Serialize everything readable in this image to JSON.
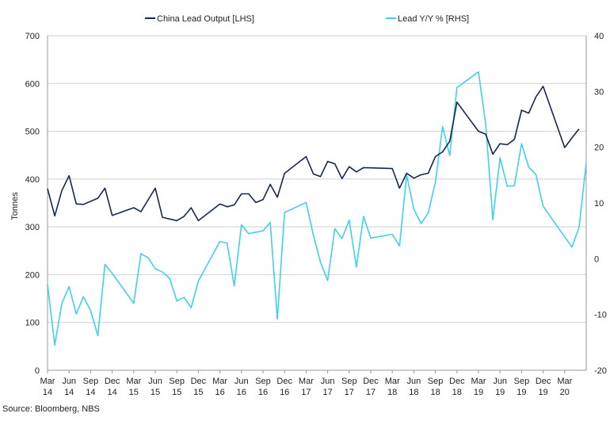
{
  "chart_data": {
    "type": "line",
    "legend": {
      "placement": "top-center"
    },
    "grid": {
      "horizontal": true,
      "vertical": false
    },
    "y_left": {
      "label": "Tonnes",
      "range": [
        0,
        700
      ],
      "ticks": [
        "0",
        "100",
        "200",
        "300",
        "400",
        "500",
        "600",
        "700"
      ]
    },
    "y_right": {
      "label": "",
      "range": [
        -20,
        40
      ],
      "ticks": [
        "-20",
        "-10",
        "0",
        "10",
        "20",
        "30",
        "40"
      ]
    },
    "x_axis": {
      "start": "2014-03",
      "end": "2020-06",
      "ticks": [
        {
          "month": "Mar",
          "year": "14"
        },
        {
          "month": "Jun",
          "year": "14"
        },
        {
          "month": "Sep",
          "year": "14"
        },
        {
          "month": "Dec",
          "year": "14"
        },
        {
          "month": "Mar",
          "year": "15"
        },
        {
          "month": "Jun",
          "year": "15"
        },
        {
          "month": "Sep",
          "year": "15"
        },
        {
          "month": "Dec",
          "year": "15"
        },
        {
          "month": "Mar",
          "year": "16"
        },
        {
          "month": "Jun",
          "year": "16"
        },
        {
          "month": "Sep",
          "year": "16"
        },
        {
          "month": "Dec",
          "year": "16"
        },
        {
          "month": "Mar",
          "year": "17"
        },
        {
          "month": "Jun",
          "year": "17"
        },
        {
          "month": "Sep",
          "year": "17"
        },
        {
          "month": "Dec",
          "year": "17"
        },
        {
          "month": "Mar",
          "year": "18"
        },
        {
          "month": "Jun",
          "year": "18"
        },
        {
          "month": "Sep",
          "year": "18"
        },
        {
          "month": "Dec",
          "year": "18"
        },
        {
          "month": "Mar",
          "year": "19"
        },
        {
          "month": "Jun",
          "year": "19"
        },
        {
          "month": "Sep",
          "year": "19"
        },
        {
          "month": "Dec",
          "year": "19"
        },
        {
          "month": "Mar",
          "year": "20"
        }
      ]
    },
    "series": [
      {
        "name": "China Lead Output [LHS]",
        "axis": "left",
        "color": "#142850",
        "points": [
          [
            "2014-03",
            380
          ],
          [
            "2014-04",
            323
          ],
          [
            "2014-05",
            376
          ],
          [
            "2014-06",
            407
          ],
          [
            "2014-07",
            348
          ],
          [
            "2014-08",
            347
          ],
          [
            "2014-10",
            360
          ],
          [
            "2014-11",
            381
          ],
          [
            "2014-12",
            324
          ],
          [
            "2015-03",
            340
          ],
          [
            "2015-04",
            332
          ],
          [
            "2015-06",
            381
          ],
          [
            "2015-07",
            320
          ],
          [
            "2015-09",
            313
          ],
          [
            "2015-10",
            322
          ],
          [
            "2015-11",
            340
          ],
          [
            "2015-12",
            313
          ],
          [
            "2016-03",
            348
          ],
          [
            "2016-04",
            342
          ],
          [
            "2016-05",
            346
          ],
          [
            "2016-06",
            369
          ],
          [
            "2016-07",
            369
          ],
          [
            "2016-08",
            351
          ],
          [
            "2016-09",
            357
          ],
          [
            "2016-10",
            389
          ],
          [
            "2016-11",
            362
          ],
          [
            "2016-12",
            412
          ],
          [
            "2017-03",
            447
          ],
          [
            "2017-04",
            411
          ],
          [
            "2017-05",
            405
          ],
          [
            "2017-06",
            437
          ],
          [
            "2017-07",
            432
          ],
          [
            "2017-08",
            401
          ],
          [
            "2017-09",
            426
          ],
          [
            "2017-10",
            415
          ],
          [
            "2017-11",
            424
          ],
          [
            "2018-03",
            422
          ],
          [
            "2018-04",
            381
          ],
          [
            "2018-05",
            412
          ],
          [
            "2018-06",
            402
          ],
          [
            "2018-07",
            409
          ],
          [
            "2018-08",
            412
          ],
          [
            "2018-09",
            447
          ],
          [
            "2018-10",
            457
          ],
          [
            "2018-11",
            479
          ],
          [
            "2018-12",
            561
          ],
          [
            "2019-03",
            500
          ],
          [
            "2019-04",
            494
          ],
          [
            "2019-05",
            452
          ],
          [
            "2019-06",
            474
          ],
          [
            "2019-07",
            472
          ],
          [
            "2019-08",
            483
          ],
          [
            "2019-09",
            544
          ],
          [
            "2019-10",
            538
          ],
          [
            "2019-11",
            572
          ],
          [
            "2019-12",
            594
          ],
          [
            "2020-03",
            466
          ],
          [
            "2020-04",
            486
          ],
          [
            "2020-05",
            505
          ]
        ]
      },
      {
        "name": "Lead Y/Y % [RHS]",
        "axis": "right",
        "color": "#3ed0ec",
        "points": [
          [
            "2014-03",
            -4.6
          ],
          [
            "2014-04",
            -15.5
          ],
          [
            "2014-05",
            -8
          ],
          [
            "2014-06",
            -5
          ],
          [
            "2014-07",
            -9.9
          ],
          [
            "2014-08",
            -6.8
          ],
          [
            "2014-09",
            -9.3
          ],
          [
            "2014-10",
            -13.8
          ],
          [
            "2014-11",
            -1
          ],
          [
            "2014-12",
            -2.6
          ],
          [
            "2015-03",
            -8
          ],
          [
            "2015-04",
            0.9
          ],
          [
            "2015-05",
            0.2
          ],
          [
            "2015-06",
            -1.8
          ],
          [
            "2015-07",
            -2.4
          ],
          [
            "2015-08",
            -3.5
          ],
          [
            "2015-09",
            -7.6
          ],
          [
            "2015-10",
            -6.9
          ],
          [
            "2015-11",
            -8.8
          ],
          [
            "2015-12",
            -4
          ],
          [
            "2016-03",
            3.1
          ],
          [
            "2016-04",
            2.8
          ],
          [
            "2016-05",
            -4.9
          ],
          [
            "2016-06",
            6.1
          ],
          [
            "2016-07",
            4.5
          ],
          [
            "2016-09",
            5
          ],
          [
            "2016-10",
            6.5
          ],
          [
            "2016-11",
            -10.8
          ],
          [
            "2016-12",
            8.3
          ],
          [
            "2017-03",
            10.1
          ],
          [
            "2017-04",
            4.3
          ],
          [
            "2017-05",
            -0.6
          ],
          [
            "2017-06",
            -3.9
          ],
          [
            "2017-07",
            5.4
          ],
          [
            "2017-08",
            3.6
          ],
          [
            "2017-09",
            6.9
          ],
          [
            "2017-10",
            -1.5
          ],
          [
            "2017-11",
            7.6
          ],
          [
            "2017-12",
            3.7
          ],
          [
            "2018-03",
            4.4
          ],
          [
            "2018-04",
            2.3
          ],
          [
            "2018-05",
            15
          ],
          [
            "2018-06",
            8.9
          ],
          [
            "2018-07",
            6.3
          ],
          [
            "2018-08",
            8.2
          ],
          [
            "2018-09",
            13.7
          ],
          [
            "2018-10",
            23.7
          ],
          [
            "2018-11",
            18.5
          ],
          [
            "2018-12",
            30.7
          ],
          [
            "2019-03",
            33.5
          ],
          [
            "2019-04",
            24.1
          ],
          [
            "2019-05",
            7
          ],
          [
            "2019-06",
            18.1
          ],
          [
            "2019-07",
            13
          ],
          [
            "2019-08",
            13.1
          ],
          [
            "2019-09",
            20.6
          ],
          [
            "2019-10",
            16.4
          ],
          [
            "2019-11",
            15.1
          ],
          [
            "2019-12",
            9.4
          ],
          [
            "2020-04",
            2.1
          ],
          [
            "2020-05",
            5.6
          ],
          [
            "2020-06",
            17.2
          ]
        ]
      }
    ]
  },
  "source": "Source: Bloomberg, NBS"
}
